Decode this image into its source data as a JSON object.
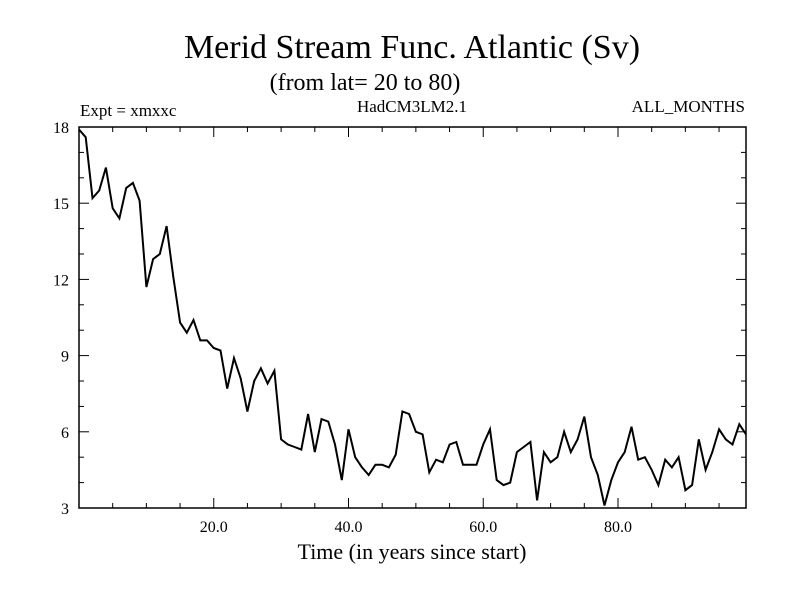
{
  "chart_data": {
    "type": "line",
    "title": "Merid Stream Func. Atlantic (Sv)",
    "subtitle": "(from lat= 20 to 80)",
    "annotations": {
      "left": "Expt = xmxxc",
      "center": "HadCM3LM2.1",
      "right": "ALL_MONTHS"
    },
    "xlabel": "Time (in years since start)",
    "ylabel": "",
    "xlim": [
      0,
      99
    ],
    "ylim": [
      3,
      18
    ],
    "x_ticks": [
      20,
      40,
      60,
      80
    ],
    "x_tick_labels": [
      "20.0",
      "40.0",
      "60.0",
      "80.0"
    ],
    "y_ticks": [
      3,
      6,
      9,
      12,
      15,
      18
    ],
    "y_tick_labels": [
      "3",
      "6",
      "9",
      "12",
      "15",
      "18"
    ],
    "grid": false,
    "series": [
      {
        "color": "#000000",
        "x": [
          0,
          1,
          2,
          3,
          4,
          5,
          6,
          7,
          8,
          9,
          10,
          11,
          12,
          13,
          14,
          15,
          16,
          17,
          18,
          19,
          20,
          21,
          22,
          23,
          24,
          25,
          26,
          27,
          28,
          29,
          30,
          31,
          32,
          33,
          34,
          35,
          36,
          37,
          38,
          39,
          40,
          41,
          42,
          43,
          44,
          45,
          46,
          47,
          48,
          49,
          50,
          51,
          52,
          53,
          54,
          55,
          56,
          57,
          58,
          59,
          60,
          61,
          62,
          63,
          64,
          65,
          66,
          67,
          68,
          69,
          70,
          71,
          72,
          73,
          74,
          75,
          76,
          77,
          78,
          79,
          80,
          81,
          82,
          83,
          84,
          85,
          86,
          87,
          88,
          89,
          90,
          91,
          92,
          93,
          94,
          95,
          96,
          97,
          98,
          99
        ],
        "values": [
          17.9,
          17.6,
          15.2,
          15.5,
          16.4,
          14.8,
          14.4,
          15.6,
          15.8,
          15.1,
          11.7,
          12.8,
          13.0,
          14.1,
          12.1,
          10.3,
          9.9,
          10.4,
          9.6,
          9.6,
          9.3,
          9.2,
          7.7,
          8.9,
          8.1,
          6.8,
          8.0,
          8.5,
          7.9,
          8.4,
          5.7,
          5.5,
          5.4,
          5.3,
          6.7,
          5.2,
          6.5,
          6.4,
          5.5,
          4.1,
          6.1,
          5.0,
          4.6,
          4.3,
          4.7,
          4.7,
          4.6,
          5.1,
          6.8,
          6.7,
          6.0,
          5.9,
          4.4,
          4.9,
          4.8,
          5.5,
          5.6,
          4.7,
          4.7,
          4.7,
          5.5,
          6.1,
          4.1,
          3.9,
          4.0,
          5.2,
          5.4,
          5.6,
          3.3,
          5.2,
          4.8,
          5.0,
          6.0,
          5.2,
          5.7,
          6.6,
          5.0,
          4.3,
          3.1,
          4.1,
          4.8,
          5.2,
          6.2,
          4.9,
          5.0,
          4.5,
          3.9,
          4.9,
          4.6,
          5.0,
          3.7,
          3.9,
          5.7,
          4.5,
          5.2,
          6.1,
          5.7,
          5.5,
          6.3,
          5.9
        ]
      }
    ]
  }
}
